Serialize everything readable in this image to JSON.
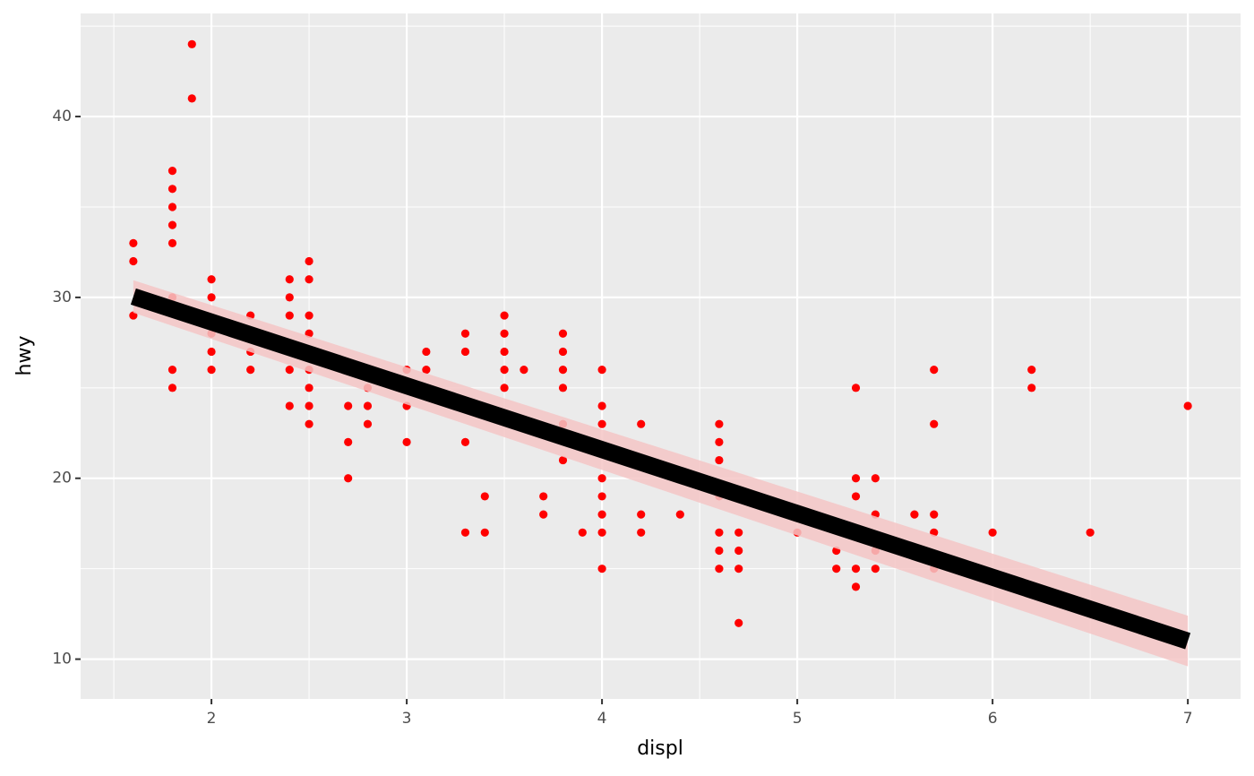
{
  "chart_data": {
    "type": "scatter",
    "x_label": "displ",
    "y_label": "hwy",
    "color": "#ff0000",
    "x": [
      1.6,
      1.6,
      1.6,
      1.8,
      1.8,
      1.8,
      1.8,
      1.8,
      1.8,
      1.8,
      1.8,
      1.9,
      1.9,
      2.0,
      2.0,
      2.0,
      2.0,
      2.0,
      2.2,
      2.2,
      2.2,
      2.4,
      2.4,
      2.4,
      2.4,
      2.4,
      2.5,
      2.5,
      2.5,
      2.5,
      2.5,
      2.5,
      2.5,
      2.5,
      2.7,
      2.7,
      2.7,
      2.8,
      2.8,
      2.8,
      3.0,
      3.0,
      3.0,
      3.1,
      3.1,
      3.3,
      3.3,
      3.3,
      3.3,
      3.4,
      3.4,
      3.5,
      3.5,
      3.5,
      3.5,
      3.5,
      3.6,
      3.7,
      3.7,
      3.8,
      3.8,
      3.8,
      3.8,
      3.8,
      3.8,
      3.9,
      4.0,
      4.0,
      4.0,
      4.0,
      4.0,
      4.0,
      4.0,
      4.0,
      4.2,
      4.2,
      4.2,
      4.4,
      4.6,
      4.6,
      4.6,
      4.6,
      4.6,
      4.6,
      4.6,
      4.7,
      4.7,
      4.7,
      4.7,
      5.0,
      5.2,
      5.2,
      5.3,
      5.3,
      5.3,
      5.3,
      5.3,
      5.4,
      5.4,
      5.4,
      5.4,
      5.6,
      5.7,
      5.7,
      5.7,
      5.7,
      5.7,
      6.0,
      6.2,
      6.2,
      6.5,
      7.0
    ],
    "values": [
      33,
      32,
      29,
      37,
      36,
      35,
      34,
      33,
      30,
      26,
      25,
      44,
      41,
      31,
      30,
      28,
      27,
      26,
      29,
      27,
      26,
      31,
      30,
      29,
      26,
      24,
      32,
      31,
      29,
      28,
      26,
      25,
      24,
      23,
      24,
      22,
      20,
      25,
      24,
      23,
      26,
      24,
      22,
      27,
      26,
      28,
      27,
      22,
      17,
      19,
      17,
      29,
      28,
      27,
      26,
      25,
      26,
      19,
      18,
      28,
      27,
      26,
      25,
      23,
      21,
      17,
      26,
      24,
      23,
      20,
      19,
      18,
      17,
      15,
      23,
      18,
      17,
      18,
      23,
      22,
      21,
      19,
      17,
      16,
      15,
      17,
      16,
      15,
      12,
      17,
      16,
      15,
      25,
      20,
      19,
      15,
      14,
      20,
      18,
      16,
      15,
      18,
      26,
      23,
      18,
      17,
      15,
      17,
      26,
      25,
      17,
      24
    ],
    "fit": {
      "x": [
        1.6,
        7.0
      ],
      "values": [
        30.05,
        11.0
      ],
      "lower": [
        29.15,
        9.6
      ],
      "upper": [
        30.95,
        12.4
      ],
      "color": "#000000",
      "fill": "#f5c6c6"
    },
    "xlim": [
      1.33,
      7.27
    ],
    "ylim": [
      7.8,
      45.7
    ],
    "xticks": [
      2,
      3,
      4,
      5,
      6,
      7
    ],
    "yticks": [
      10,
      20,
      30,
      40
    ],
    "x_minor_grid": [
      1.5,
      2.5,
      3.5,
      4.5,
      5.5,
      6.5
    ],
    "y_minor_grid": [
      15,
      25,
      35,
      45
    ],
    "grid": true
  }
}
